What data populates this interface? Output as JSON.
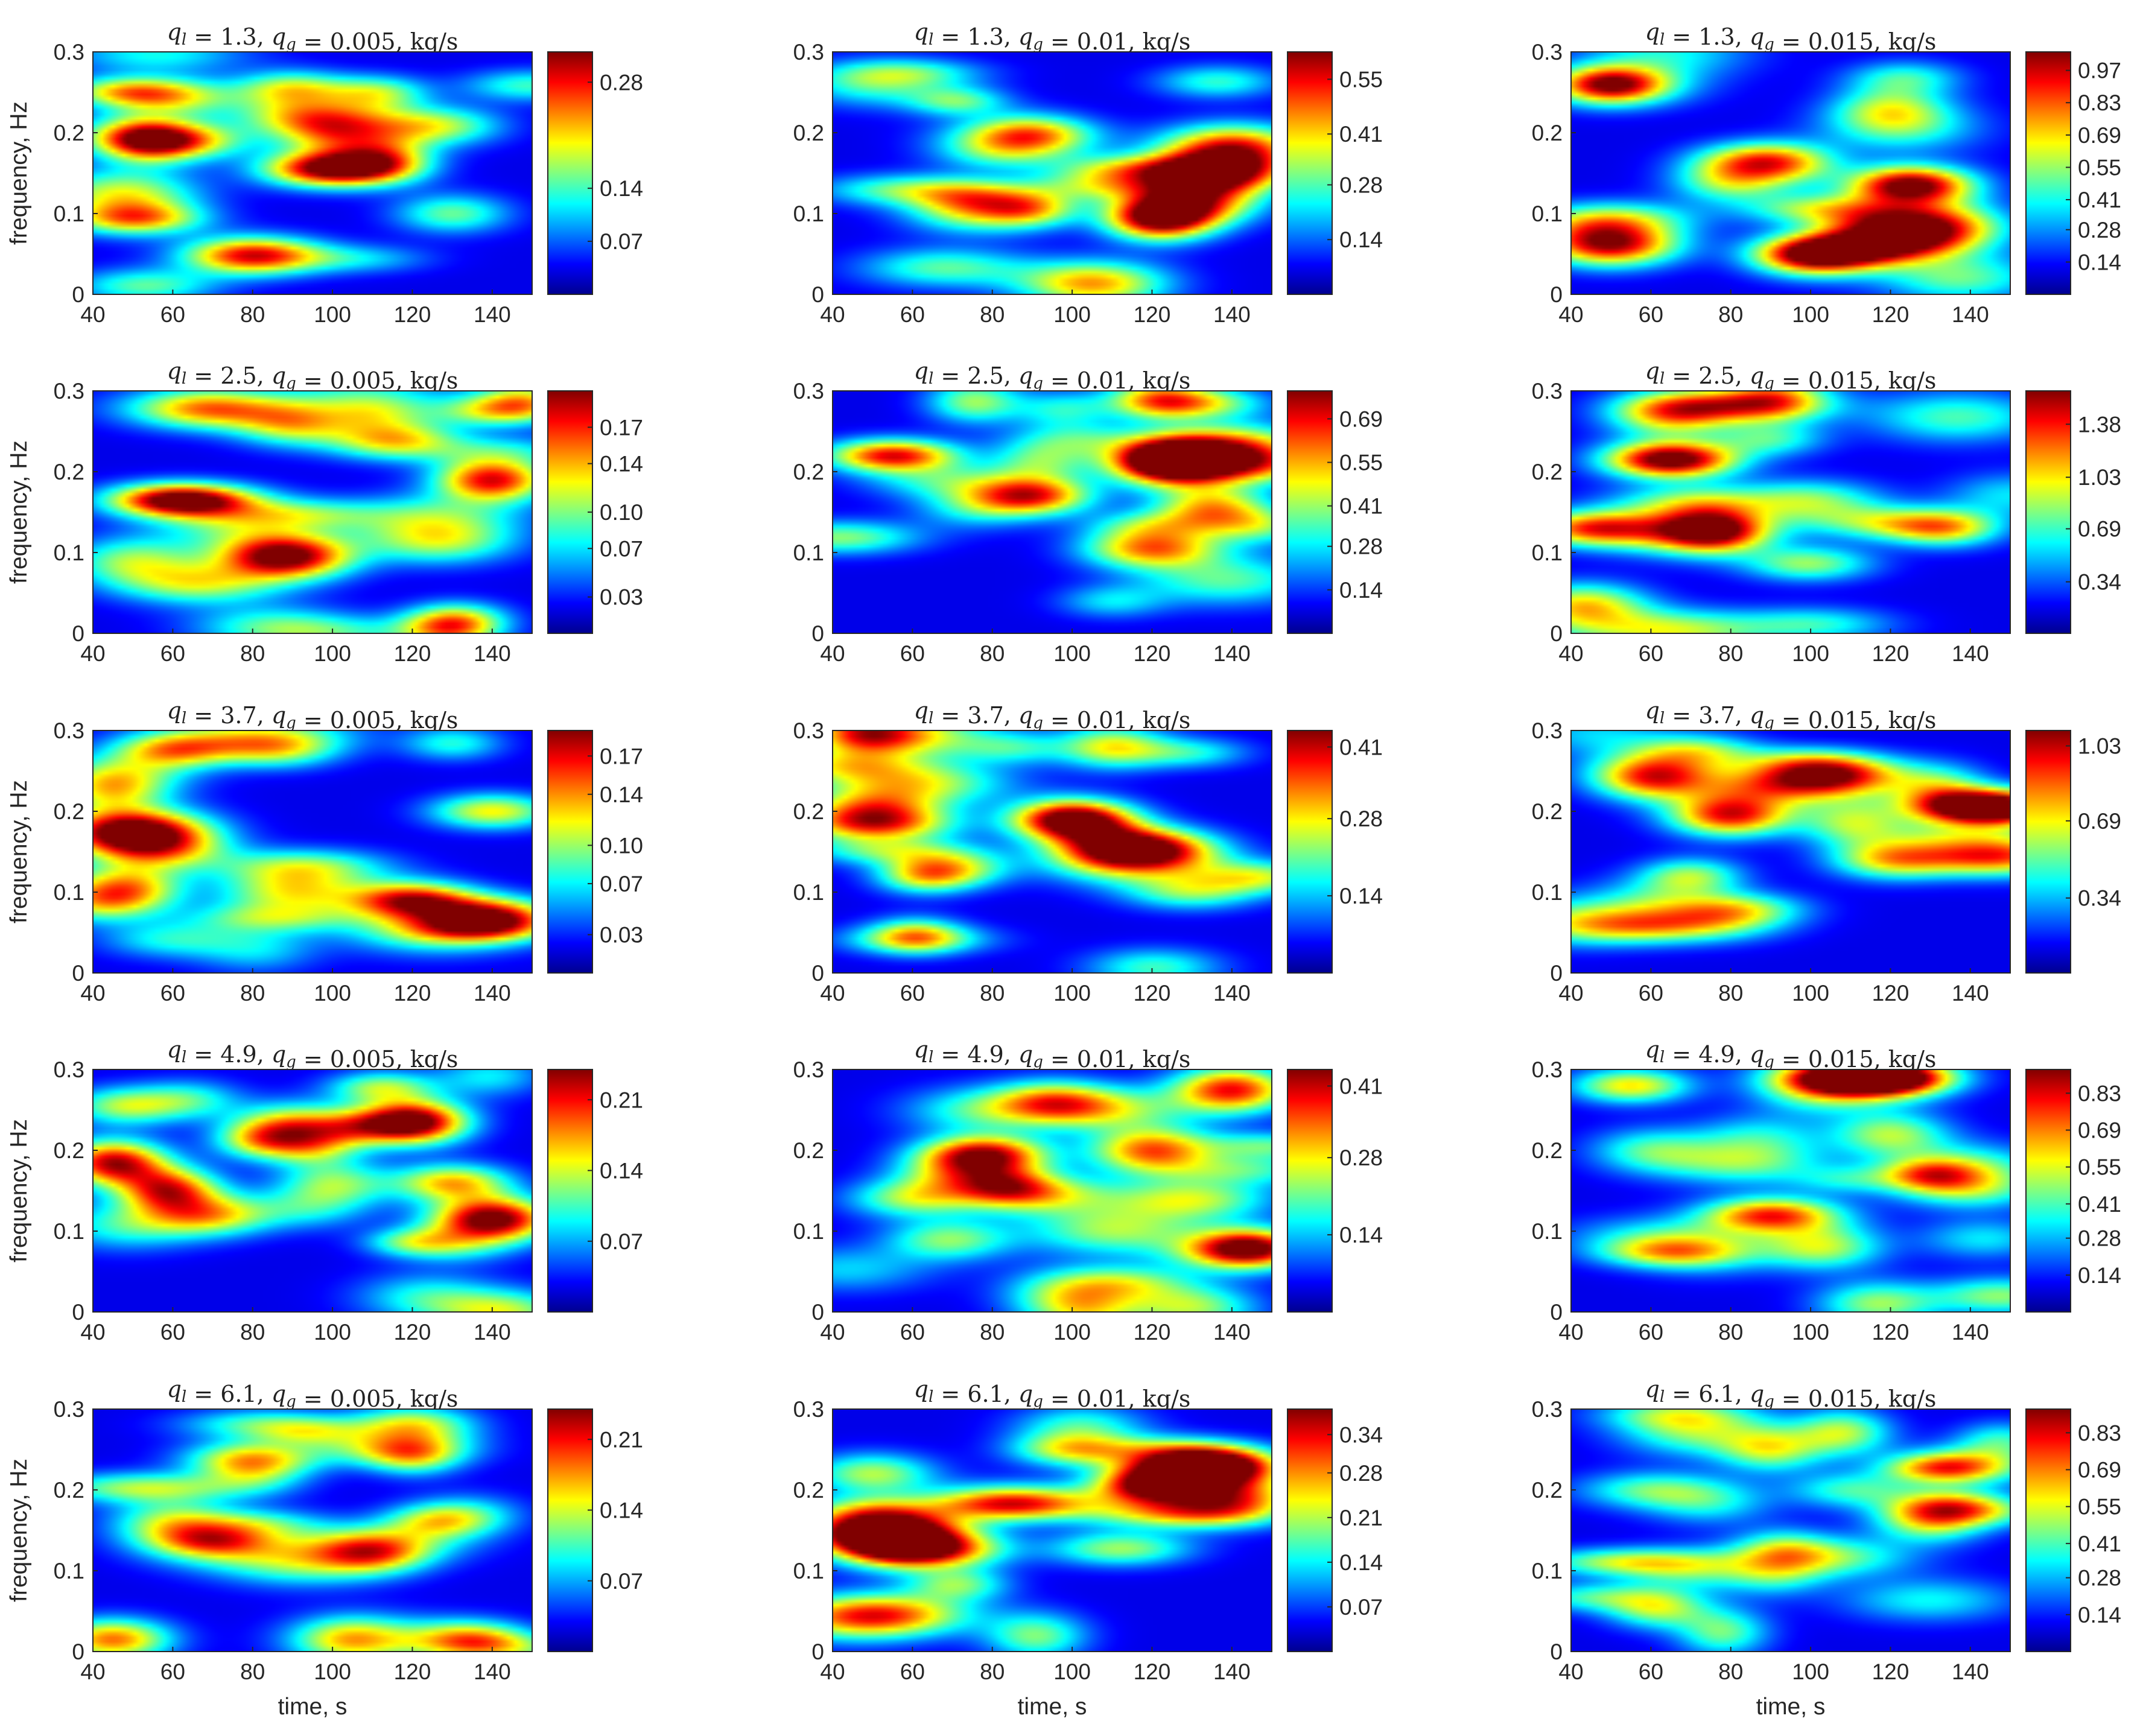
{
  "figure": {
    "xlabel": "time, s",
    "ylabel": "frequency, Hz",
    "xticks": [
      40,
      60,
      80,
      100,
      120,
      140
    ],
    "yticks": [
      0,
      0.1,
      0.2,
      0.3
    ],
    "xlim": [
      40,
      150
    ],
    "ylim": [
      0,
      0.3
    ],
    "colormap": "jet",
    "colormap_stops": [
      "#00008f",
      "#0000ff",
      "#0080ff",
      "#00ffff",
      "#80ff80",
      "#ffff00",
      "#ff8000",
      "#ff0000",
      "#800000"
    ]
  },
  "chart_data": [
    {
      "type": "heatmap",
      "title": "q_l = 1.3, q_g = 0.005, kg/s",
      "title_main": "1.3",
      "title_sub": "0.005",
      "cmax": 0.32,
      "cticks": [
        0.07,
        0.14,
        0.28
      ],
      "peaks": [
        [
          100,
          0.155,
          0.3
        ],
        [
          80,
          0.048,
          0.26
        ],
        [
          60,
          0.19,
          0.2
        ],
        [
          90,
          0.255,
          0.15
        ],
        [
          130,
          0.1,
          0.12
        ],
        [
          50,
          0.1,
          0.1
        ]
      ]
    },
    {
      "type": "heatmap",
      "title": "q_l = 1.3, q_g = 0.01, kg/s",
      "title_main": "1.3",
      "title_sub": "0.01",
      "cmax": 0.62,
      "cticks": [
        0.14,
        0.28,
        0.41,
        0.55
      ],
      "peaks": [
        [
          122,
          0.095,
          0.6
        ],
        [
          135,
          0.15,
          0.48
        ],
        [
          140,
          0.185,
          0.35
        ],
        [
          75,
          0.12,
          0.22
        ],
        [
          90,
          0.2,
          0.2
        ],
        [
          50,
          0.26,
          0.2
        ]
      ]
    },
    {
      "type": "heatmap",
      "title": "q_l = 1.3, q_g = 0.015, kg/s",
      "title_main": "1.3",
      "title_sub": "0.015",
      "cmax": 1.05,
      "cticks": [
        0.14,
        0.28,
        0.41,
        0.55,
        0.69,
        0.83,
        0.97
      ],
      "peaks": [
        [
          125,
          0.135,
          1.0
        ],
        [
          50,
          0.06,
          0.8
        ],
        [
          50,
          0.26,
          0.7
        ],
        [
          102,
          0.05,
          0.75
        ],
        [
          80,
          0.14,
          0.45
        ],
        [
          120,
          0.23,
          0.4
        ]
      ]
    },
    {
      "type": "heatmap",
      "title": "q_l = 2.5, q_g = 0.005, kg/s",
      "title_main": "2.5",
      "title_sub": "0.005",
      "cmax": 0.2,
      "cticks": [
        0.03,
        0.07,
        0.1,
        0.14,
        0.17
      ],
      "peaks": [
        [
          62,
          0.165,
          0.2
        ],
        [
          88,
          0.095,
          0.19
        ],
        [
          140,
          0.19,
          0.16
        ],
        [
          115,
          0.24,
          0.11
        ],
        [
          90,
          0.26,
          0.1
        ],
        [
          50,
          0.09,
          0.08
        ]
      ]
    },
    {
      "type": "heatmap",
      "title": "q_l = 2.5, q_g = 0.01, kg/s",
      "title_main": "2.5",
      "title_sub": "0.01",
      "cmax": 0.78,
      "cticks": [
        0.14,
        0.28,
        0.41,
        0.55,
        0.69
      ],
      "peaks": [
        [
          125,
          0.215,
          0.78
        ],
        [
          55,
          0.22,
          0.62
        ],
        [
          90,
          0.17,
          0.55
        ],
        [
          120,
          0.105,
          0.5
        ],
        [
          135,
          0.155,
          0.45
        ],
        [
          130,
          0.285,
          0.4
        ]
      ]
    },
    {
      "type": "heatmap",
      "title": "q_l = 2.5, q_g = 0.015, kg/s",
      "title_main": "2.5",
      "title_sub": "0.015",
      "cmax": 1.6,
      "cticks": [
        0.34,
        0.69,
        1.03,
        1.38
      ],
      "peaks": [
        [
          65,
          0.215,
          1.6
        ],
        [
          45,
          0.13,
          1.05
        ],
        [
          65,
          0.27,
          0.85
        ],
        [
          100,
          0.165,
          0.6
        ],
        [
          130,
          0.13,
          0.5
        ],
        [
          90,
          0.24,
          0.5
        ]
      ]
    },
    {
      "type": "heatmap",
      "title": "q_l = 3.7, q_g = 0.005, kg/s",
      "title_main": "3.7",
      "title_sub": "0.005",
      "cmax": 0.19,
      "cticks": [
        0.03,
        0.07,
        0.1,
        0.14,
        0.17
      ],
      "peaks": [
        [
          50,
          0.175,
          0.19
        ],
        [
          120,
          0.09,
          0.15
        ],
        [
          140,
          0.07,
          0.14
        ],
        [
          90,
          0.1,
          0.09
        ],
        [
          60,
          0.275,
          0.09
        ],
        [
          140,
          0.2,
          0.1
        ]
      ]
    },
    {
      "type": "heatmap",
      "title": "q_l = 3.7, q_g = 0.01, kg/s",
      "title_main": "3.7",
      "title_sub": "0.01",
      "cmax": 0.44,
      "cticks": [
        0.14,
        0.28,
        0.41
      ],
      "peaks": [
        [
          100,
          0.19,
          0.44
        ],
        [
          120,
          0.155,
          0.26
        ],
        [
          50,
          0.2,
          0.26
        ],
        [
          110,
          0.28,
          0.22
        ],
        [
          70,
          0.13,
          0.18
        ],
        [
          130,
          0.1,
          0.16
        ]
      ]
    },
    {
      "type": "heatmap",
      "title": "q_l = 3.7, q_g = 0.015, kg/s",
      "title_main": "3.7",
      "title_sub": "0.015",
      "cmax": 1.1,
      "cticks": [
        0.34,
        0.69,
        1.03
      ],
      "peaks": [
        [
          145,
          0.205,
          1.1
        ],
        [
          80,
          0.195,
          0.85
        ],
        [
          105,
          0.245,
          0.85
        ],
        [
          60,
          0.24,
          0.55
        ],
        [
          120,
          0.14,
          0.5
        ],
        [
          70,
          0.12,
          0.45
        ]
      ]
    },
    {
      "type": "heatmap",
      "title": "q_l = 4.9, q_g = 0.005, kg/s",
      "title_main": "4.9",
      "title_sub": "0.005",
      "cmax": 0.24,
      "cticks": [
        0.07,
        0.14,
        0.21
      ],
      "peaks": [
        [
          120,
          0.235,
          0.24
        ],
        [
          140,
          0.115,
          0.23
        ],
        [
          45,
          0.185,
          0.2
        ],
        [
          90,
          0.23,
          0.14
        ],
        [
          70,
          0.12,
          0.12
        ],
        [
          130,
          0.16,
          0.14
        ]
      ]
    },
    {
      "type": "heatmap",
      "title": "q_l = 4.9, q_g = 0.01, kg/s",
      "title_main": "4.9",
      "title_sub": "0.01",
      "cmax": 0.44,
      "cticks": [
        0.14,
        0.28,
        0.41
      ],
      "peaks": [
        [
          78,
          0.195,
          0.36
        ],
        [
          140,
          0.275,
          0.34
        ],
        [
          145,
          0.08,
          0.3
        ],
        [
          120,
          0.2,
          0.3
        ],
        [
          95,
          0.26,
          0.22
        ],
        [
          60,
          0.14,
          0.18
        ]
      ]
    },
    {
      "type": "heatmap",
      "title": "q_l = 4.9, q_g = 0.015, kg/s",
      "title_main": "4.9",
      "title_sub": "0.015",
      "cmax": 0.92,
      "cticks": [
        0.14,
        0.28,
        0.41,
        0.55,
        0.69,
        0.83
      ],
      "peaks": [
        [
          115,
          0.29,
          0.8
        ],
        [
          55,
          0.28,
          0.5
        ],
        [
          120,
          0.22,
          0.4
        ],
        [
          90,
          0.12,
          0.35
        ],
        [
          60,
          0.2,
          0.3
        ],
        [
          140,
          0.15,
          0.3
        ]
      ]
    },
    {
      "type": "heatmap",
      "title": "q_l = 6.1, q_g = 0.005, kg/s",
      "title_main": "6.1",
      "title_sub": "0.005",
      "cmax": 0.24,
      "cticks": [
        0.07,
        0.14,
        0.21
      ],
      "peaks": [
        [
          45,
          0.015,
          0.16
        ],
        [
          135,
          0.015,
          0.13
        ],
        [
          120,
          0.28,
          0.12
        ],
        [
          80,
          0.24,
          0.11
        ],
        [
          60,
          0.16,
          0.1
        ],
        [
          110,
          0.12,
          0.1
        ]
      ]
    },
    {
      "type": "heatmap",
      "title": "q_l = 6.1, q_g = 0.01, kg/s",
      "title_main": "6.1",
      "title_sub": "0.01",
      "cmax": 0.38,
      "cticks": [
        0.07,
        0.14,
        0.21,
        0.28,
        0.34
      ],
      "peaks": [
        [
          135,
          0.23,
          0.37
        ],
        [
          120,
          0.205,
          0.32
        ],
        [
          140,
          0.19,
          0.26
        ],
        [
          65,
          0.125,
          0.22
        ],
        [
          100,
          0.25,
          0.18
        ],
        [
          50,
          0.22,
          0.17
        ]
      ]
    },
    {
      "type": "heatmap",
      "title": "q_l = 6.1, q_g = 0.015, kg/s",
      "title_main": "6.1",
      "title_sub": "0.015",
      "cmax": 0.92,
      "cticks": [
        0.14,
        0.28,
        0.41,
        0.55,
        0.69,
        0.83
      ],
      "peaks": [
        [
          90,
          0.25,
          0.4
        ],
        [
          130,
          0.16,
          0.4
        ],
        [
          140,
          0.23,
          0.35
        ],
        [
          60,
          0.2,
          0.32
        ],
        [
          110,
          0.2,
          0.3
        ],
        [
          70,
          0.1,
          0.26
        ]
      ]
    }
  ]
}
